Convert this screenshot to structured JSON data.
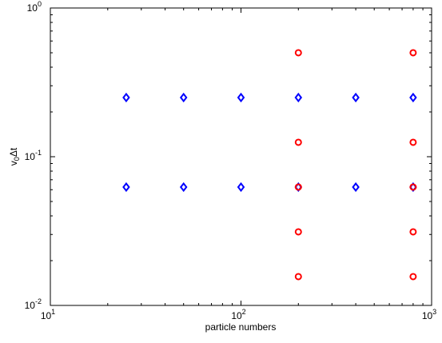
{
  "chart_data": {
    "type": "scatter",
    "title": "",
    "xlabel": "particle numbers",
    "ylabel_main": "v",
    "ylabel_sub": "0",
    "ylabel_rest": "Δt",
    "x_scale": "log",
    "y_scale": "log",
    "xlim": [
      10,
      1000
    ],
    "ylim": [
      0.01,
      1
    ],
    "grid": false,
    "legend": "none",
    "x_ticks": [
      {
        "value": 10,
        "base": "10",
        "exp": "1"
      },
      {
        "value": 100,
        "base": "10",
        "exp": "2"
      },
      {
        "value": 1000,
        "base": "10",
        "exp": "3"
      }
    ],
    "y_ticks": [
      {
        "value": 0.01,
        "base": "10",
        "exp": "-2"
      },
      {
        "value": 0.1,
        "base": "10",
        "exp": "-1"
      },
      {
        "value": 1,
        "base": "10",
        "exp": "0"
      }
    ],
    "series": [
      {
        "marker": "diamond",
        "color": "#0000ff",
        "points": [
          {
            "x": 25,
            "y": 0.25
          },
          {
            "x": 50,
            "y": 0.25
          },
          {
            "x": 100,
            "y": 0.25
          },
          {
            "x": 200,
            "y": 0.25
          },
          {
            "x": 400,
            "y": 0.25
          },
          {
            "x": 800,
            "y": 0.25
          },
          {
            "x": 25,
            "y": 0.0625
          },
          {
            "x": 50,
            "y": 0.0625
          },
          {
            "x": 100,
            "y": 0.0625
          },
          {
            "x": 200,
            "y": 0.0625
          },
          {
            "x": 400,
            "y": 0.0625
          },
          {
            "x": 800,
            "y": 0.0625
          }
        ]
      },
      {
        "marker": "circle",
        "color": "#ff0000",
        "points": [
          {
            "x": 200,
            "y": 0.5
          },
          {
            "x": 200,
            "y": 0.125
          },
          {
            "x": 200,
            "y": 0.0625
          },
          {
            "x": 200,
            "y": 0.03125
          },
          {
            "x": 200,
            "y": 0.015625
          },
          {
            "x": 800,
            "y": 0.5
          },
          {
            "x": 800,
            "y": 0.125
          },
          {
            "x": 800,
            "y": 0.0625
          },
          {
            "x": 800,
            "y": 0.03125
          },
          {
            "x": 800,
            "y": 0.015625
          }
        ]
      }
    ]
  }
}
